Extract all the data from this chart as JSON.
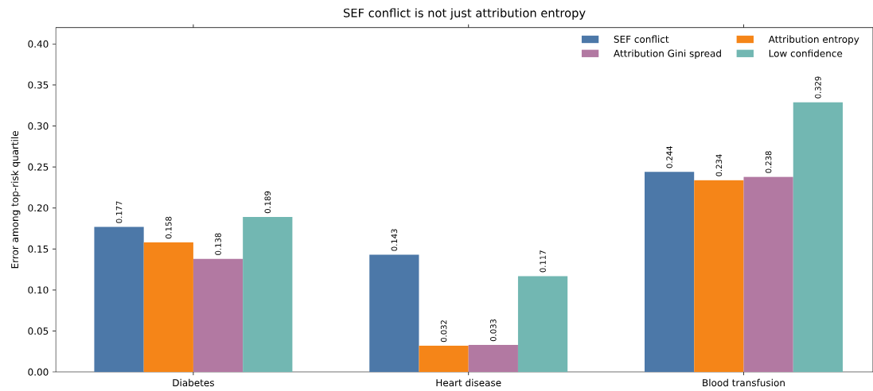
{
  "chart_data": {
    "type": "bar",
    "title": "SEF conflict is not just attribution entropy",
    "ylabel": "Error among top-risk quartile",
    "categories": [
      "Diabetes",
      "Heart disease",
      "Blood transfusion"
    ],
    "series": [
      {
        "name": "SEF conflict",
        "color": "#4c78a8",
        "values": [
          0.177,
          0.143,
          0.244
        ]
      },
      {
        "name": "Attribution entropy",
        "color": "#f58518",
        "values": [
          0.158,
          0.032,
          0.234
        ]
      },
      {
        "name": "Attribution Gini spread",
        "color": "#b279a2",
        "values": [
          0.138,
          0.033,
          0.238
        ]
      },
      {
        "name": "Low confidence",
        "color": "#72b7b2",
        "values": [
          0.189,
          0.117,
          0.329
        ]
      }
    ],
    "ylim": [
      0,
      0.42
    ],
    "yticks": [
      {
        "value": 0,
        "label": "0.00"
      },
      {
        "value": 0.05,
        "label": "0.05"
      },
      {
        "value": 0.1,
        "label": "0.10"
      },
      {
        "value": 0.15,
        "label": "0.15"
      },
      {
        "value": 0.2,
        "label": "0.20"
      },
      {
        "value": 0.25,
        "label": "0.25"
      },
      {
        "value": 0.3,
        "label": "0.30"
      },
      {
        "value": 0.35,
        "label": "0.35"
      },
      {
        "value": 0.4,
        "label": "0.40"
      }
    ],
    "data_labels": true,
    "legend": "top right",
    "grid": false
  }
}
